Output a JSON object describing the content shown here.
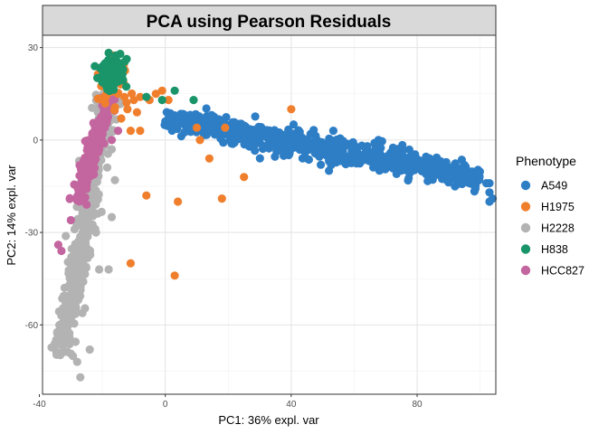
{
  "chart_data": {
    "type": "scatter",
    "title": "PCA using Pearson Residuals",
    "xlabel": "PC1: 36% expl. var",
    "ylabel": "PC2: 14% expl. var",
    "xlim": [
      -39,
      105
    ],
    "ylim": [
      -82.5,
      34
    ],
    "x_ticks": [
      -40,
      0,
      40,
      80
    ],
    "y_ticks": [
      30,
      0,
      -30,
      -60
    ],
    "grid": true,
    "legend_title": "Phenotype",
    "legend_position": "right",
    "series": [
      {
        "name": "A549",
        "color": "#2e7ec6",
        "cluster": {
          "type": "band",
          "x0": 0,
          "y0": 7,
          "x1": 100,
          "y1": -12,
          "thickness": 4,
          "n": 650
        },
        "points": [
          {
            "x": 0,
            "y": 6
          },
          {
            "x": 3,
            "y": 8
          },
          {
            "x": 6,
            "y": 5
          },
          {
            "x": 10,
            "y": 7
          },
          {
            "x": 14,
            "y": 4
          },
          {
            "x": 19,
            "y": 3
          },
          {
            "x": 30,
            "y": 1
          },
          {
            "x": 52,
            "y": -10
          },
          {
            "x": 73,
            "y": -8
          },
          {
            "x": 86,
            "y": -9
          },
          {
            "x": 94,
            "y": -13
          },
          {
            "x": 96,
            "y": -11
          },
          {
            "x": 102,
            "y": -14
          },
          {
            "x": 103,
            "y": -14
          },
          {
            "x": 103,
            "y": -17
          },
          {
            "x": 104,
            "y": -19
          },
          {
            "x": 103,
            "y": -20
          }
        ]
      },
      {
        "name": "H1975",
        "color": "#f07f2d",
        "cluster": {
          "type": "blob",
          "cx": -18,
          "cy": 17,
          "sx": 3,
          "sy": 4,
          "n": 30
        },
        "points": [
          {
            "x": -20,
            "y": 19
          },
          {
            "x": -15,
            "y": 15
          },
          {
            "x": -13,
            "y": 14
          },
          {
            "x": -12,
            "y": 10
          },
          {
            "x": -10,
            "y": 13
          },
          {
            "x": -8,
            "y": 14
          },
          {
            "x": -5,
            "y": 13
          },
          {
            "x": -3,
            "y": 15
          },
          {
            "x": -1,
            "y": 16
          },
          {
            "x": 1,
            "y": 13
          },
          {
            "x": -11,
            "y": 3
          },
          {
            "x": -8,
            "y": 3
          },
          {
            "x": -14,
            "y": 7
          },
          {
            "x": -9,
            "y": 9
          },
          {
            "x": 10,
            "y": 4
          },
          {
            "x": 11,
            "y": 0
          },
          {
            "x": 14,
            "y": -6
          },
          {
            "x": 19,
            "y": 4
          },
          {
            "x": 25,
            "y": -12
          },
          {
            "x": 40,
            "y": 10
          },
          {
            "x": -6,
            "y": -18
          },
          {
            "x": 4,
            "y": -20
          },
          {
            "x": 18,
            "y": -19
          },
          {
            "x": -11,
            "y": -40
          },
          {
            "x": 3,
            "y": -44
          }
        ]
      },
      {
        "name": "H2228",
        "color": "#b3b3b3",
        "cluster": {
          "type": "band",
          "x0": -18,
          "y0": 15,
          "x1": -33,
          "y1": -70,
          "thickness": 3,
          "n": 420
        },
        "points": [
          {
            "x": -27,
            "y": -77
          },
          {
            "x": -24,
            "y": -68
          },
          {
            "x": -28,
            "y": -72
          },
          {
            "x": -34,
            "y": -65
          },
          {
            "x": -33,
            "y": -57
          },
          {
            "x": -21,
            "y": -42
          },
          {
            "x": -18,
            "y": -42
          },
          {
            "x": -17,
            "y": -25
          },
          {
            "x": -16,
            "y": -13
          },
          {
            "x": -17,
            "y": -3
          },
          {
            "x": -30,
            "y": -45
          },
          {
            "x": -32,
            "y": -48
          },
          {
            "x": -22,
            "y": -30
          }
        ]
      },
      {
        "name": "H838",
        "color": "#1a9469",
        "cluster": {
          "type": "blob",
          "cx": -17,
          "cy": 21,
          "sx": 2,
          "sy": 2.5,
          "n": 90
        },
        "points": [
          {
            "x": -19,
            "y": 25
          },
          {
            "x": -16,
            "y": 25
          },
          {
            "x": -14,
            "y": 23
          },
          {
            "x": -6,
            "y": 14
          },
          {
            "x": -1,
            "y": 13
          },
          {
            "x": 3,
            "y": 16
          },
          {
            "x": 9,
            "y": 13
          }
        ]
      },
      {
        "name": "HCC827",
        "color": "#c3659f",
        "cluster": {
          "type": "band",
          "x0": -18,
          "y0": 14,
          "x1": -28,
          "y1": -20,
          "thickness": 2,
          "n": 160
        },
        "points": [
          {
            "x": -30,
            "y": -26
          },
          {
            "x": -34,
            "y": -34
          },
          {
            "x": -33,
            "y": -36
          },
          {
            "x": -25,
            "y": -21
          },
          {
            "x": -28,
            "y": -19
          },
          {
            "x": -26,
            "y": -16
          },
          {
            "x": -20,
            "y": 2
          },
          {
            "x": -17,
            "y": 0
          },
          {
            "x": -15,
            "y": 3
          },
          {
            "x": -21,
            "y": -3
          },
          {
            "x": -23,
            "y": -8
          },
          {
            "x": -26,
            "y": -10
          }
        ]
      }
    ]
  }
}
